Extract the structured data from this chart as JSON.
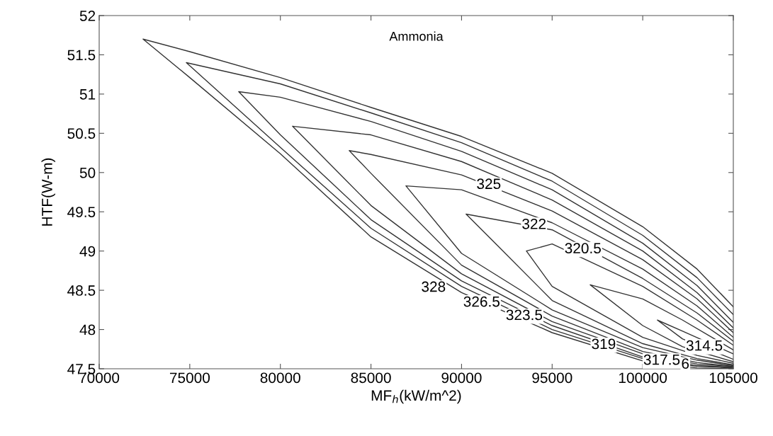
{
  "chart_data": {
    "type": "line",
    "xlabel": "MF$_{h}$(kW/m^2)",
    "ylabel": "HTF(W-m)",
    "xlim": [
      70000,
      105000
    ],
    "xticks": [
      70000,
      75000,
      80000,
      85000,
      90000,
      95000,
      100000,
      105000
    ],
    "ylim": [
      47.5,
      52
    ],
    "yticks": [
      47.5,
      48,
      48.5,
      49,
      49.5,
      50,
      50.5,
      51,
      51.5,
      52
    ],
    "grid": false,
    "series": [
      {
        "color": "#333333",
        "x": [
          105000,
          103000,
          100000,
          95000,
          90000,
          85000,
          80000,
          75000,
          72420,
          75000,
          80000,
          85000,
          90000,
          95000,
          100000,
          103000,
          105000
        ],
        "values": [
          47.5,
          47.51,
          47.6,
          47.96,
          48.47,
          49.18,
          50.24,
          51.21,
          51.7,
          51.54,
          51.21,
          50.83,
          50.46,
          49.99,
          49.31,
          48.77,
          48.29
        ]
      },
      {
        "color": "#333333",
        "x": [
          105000,
          103000,
          100000,
          95000,
          90000,
          85000,
          80000,
          74810,
          80000,
          85000,
          90000,
          95000,
          100000,
          103000,
          105000
        ],
        "values": [
          47.51,
          47.53,
          47.63,
          48.0,
          48.55,
          49.29,
          50.32,
          51.4,
          51.13,
          50.76,
          50.38,
          49.89,
          49.2,
          48.66,
          48.19
        ]
      },
      {
        "color": "#333333",
        "x": [
          105000,
          103000,
          100000,
          95000,
          90000,
          85000,
          80000,
          77700,
          80000,
          85000,
          90000,
          95000,
          100000,
          103000,
          105000
        ],
        "values": [
          47.52,
          47.54,
          47.65,
          48.05,
          48.62,
          49.4,
          50.48,
          51.03,
          50.96,
          50.65,
          50.27,
          49.78,
          49.1,
          48.56,
          48.09
        ]
      },
      {
        "color": "#333333",
        "x": [
          105000,
          103000,
          100000,
          95000,
          90000,
          85000,
          80670,
          85000,
          90000,
          95000,
          100000,
          103000,
          105000
        ],
        "values": [
          47.53,
          47.56,
          47.69,
          48.1,
          48.71,
          49.58,
          50.59,
          50.48,
          50.14,
          49.65,
          49.0,
          48.47,
          48.02
        ]
      },
      {
        "color": "#333333",
        "x": [
          105000,
          103000,
          100000,
          95000,
          90000,
          85000,
          83800,
          85000,
          90000,
          95000,
          100000,
          103000,
          105000
        ],
        "values": [
          47.53,
          47.58,
          47.72,
          48.17,
          48.82,
          49.99,
          50.28,
          50.23,
          49.97,
          49.51,
          48.89,
          48.39,
          47.96
        ]
      },
      {
        "color": "#333333",
        "x": [
          105000,
          103000,
          100000,
          95000,
          90000,
          86930,
          90000,
          95000,
          100000,
          103000,
          105000
        ],
        "values": [
          47.54,
          47.61,
          47.77,
          48.25,
          48.97,
          49.83,
          49.78,
          49.36,
          48.77,
          48.3,
          47.9
        ]
      },
      {
        "color": "#333333",
        "x": [
          105000,
          103000,
          100000,
          95000,
          91900,
          90250,
          95000,
          100000,
          103000,
          105000
        ],
        "values": [
          47.55,
          47.63,
          47.82,
          48.37,
          49.09,
          49.47,
          49.27,
          48.65,
          48.21,
          47.85
        ]
      },
      {
        "color": "#333333",
        "x": [
          105000,
          103000,
          100000,
          95000,
          93580,
          95000,
          100000,
          103000,
          105000
        ],
        "values": [
          47.57,
          47.67,
          47.9,
          48.55,
          49.0,
          49.09,
          48.55,
          48.12,
          47.8
        ]
      },
      {
        "color": "#333333",
        "x": [
          105000,
          102200,
          100000,
          97100,
          100000,
          102200,
          105000
        ],
        "values": [
          47.59,
          47.78,
          48.05,
          48.57,
          48.39,
          48.12,
          47.74
        ]
      },
      {
        "color": "#333333",
        "x": [
          105000,
          102200,
          100810,
          102200,
          105000
        ],
        "values": [
          47.62,
          47.88,
          48.12,
          47.98,
          47.69
        ]
      }
    ],
    "annotations": [
      "Ammonia",
      {
        "text": "325",
        "x": 91500,
        "y": 49.84
      },
      {
        "text": "322",
        "x": 94000,
        "y": 49.33
      },
      {
        "text": "320.5",
        "x": 96700,
        "y": 49.02
      },
      {
        "text": "328",
        "x": 88450,
        "y": 48.53
      },
      {
        "text": "326.5",
        "x": 91110,
        "y": 48.34
      },
      {
        "text": "323.5",
        "x": 93460,
        "y": 48.17
      },
      {
        "text": "319",
        "x": 97840,
        "y": 47.8
      },
      {
        "text": "317.5",
        "x": 101050,
        "y": 47.6
      },
      {
        "text": "6",
        "x": 102350,
        "y": 47.55
      },
      {
        "text": "314.5",
        "x": 103400,
        "y": 47.78
      }
    ]
  }
}
